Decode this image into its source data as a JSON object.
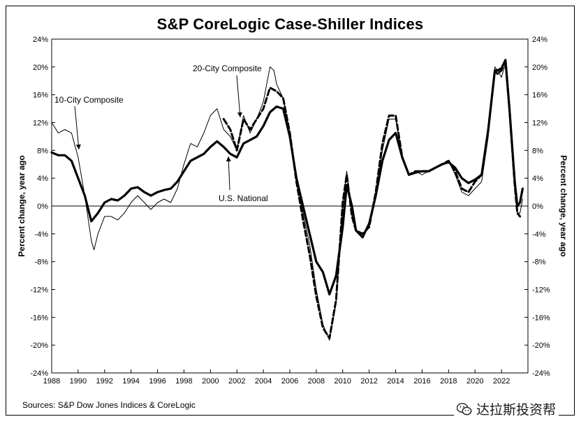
{
  "chart_data": {
    "type": "line",
    "title": "S&P CoreLogic Case-Shiller Indices",
    "ylabel_left": "Percent change, year ago",
    "ylabel_right": "Percent change, year ago",
    "xlabel": "",
    "xlim": [
      1988,
      2024
    ],
    "ylim": [
      -24,
      24
    ],
    "x_ticks": [
      "1988",
      "1990",
      "1992",
      "1994",
      "1996",
      "1998",
      "2000",
      "2002",
      "2004",
      "2006",
      "2008",
      "2010",
      "2012",
      "2014",
      "2016",
      "2018",
      "2020",
      "2022"
    ],
    "y_ticks": [
      "24%",
      "20%",
      "16%",
      "12%",
      "8%",
      "4%",
      "0%",
      "-4%",
      "-8%",
      "-12%",
      "-16%",
      "-20%",
      "-24%"
    ],
    "grid": false,
    "source": "Sources: S&P Dow Jones Indices & CoreLogic",
    "annotations": [
      {
        "text": "10-City Composite"
      },
      {
        "text": "20-City Composite"
      },
      {
        "text": "U.S. National"
      }
    ],
    "series": [
      {
        "name": "10-City Composite",
        "style": "thin",
        "points": [
          [
            1988,
            12.0
          ],
          [
            1988.5,
            10.5
          ],
          [
            1989,
            11.0
          ],
          [
            1989.5,
            10.5
          ],
          [
            1990,
            7.0
          ],
          [
            1990.5,
            1.5
          ],
          [
            1991,
            -5.0
          ],
          [
            1991.2,
            -6.3
          ],
          [
            1991.5,
            -4.0
          ],
          [
            1992,
            -1.5
          ],
          [
            1992.5,
            -1.5
          ],
          [
            1993,
            -2.0
          ],
          [
            1993.5,
            -1.0
          ],
          [
            1994,
            0.5
          ],
          [
            1994.5,
            1.5
          ],
          [
            1995,
            0.5
          ],
          [
            1995.5,
            -0.5
          ],
          [
            1996,
            0.5
          ],
          [
            1996.5,
            1.0
          ],
          [
            1997,
            0.5
          ],
          [
            1997.5,
            2.5
          ],
          [
            1998,
            6.0
          ],
          [
            1998.5,
            9.0
          ],
          [
            1999,
            8.5
          ],
          [
            1999.5,
            10.5
          ],
          [
            2000,
            13.0
          ],
          [
            2000.5,
            14.0
          ],
          [
            2001,
            11.0
          ],
          [
            2001.5,
            10.0
          ],
          [
            2002,
            8.0
          ],
          [
            2002.5,
            13.0
          ],
          [
            2003,
            10.5
          ],
          [
            2003.5,
            12.5
          ],
          [
            2004,
            15.0
          ],
          [
            2004.5,
            20.0
          ],
          [
            2004.8,
            19.5
          ],
          [
            2005,
            17.5
          ],
          [
            2005.5,
            15.5
          ],
          [
            2006,
            10.0
          ],
          [
            2006.5,
            4.0
          ],
          [
            2007,
            -1.0
          ],
          [
            2007.5,
            -5.5
          ],
          [
            2008,
            -12.0
          ],
          [
            2008.5,
            -17.0
          ],
          [
            2009,
            -19.3
          ],
          [
            2009.5,
            -14.0
          ],
          [
            2010,
            0.0
          ],
          [
            2010.3,
            5.0
          ],
          [
            2010.7,
            -1.0
          ],
          [
            2011,
            -3.5
          ],
          [
            2011.5,
            -4.0
          ],
          [
            2012,
            -3.0
          ],
          [
            2012.5,
            1.5
          ],
          [
            2013,
            8.0
          ],
          [
            2013.5,
            12.5
          ],
          [
            2014,
            12.5
          ],
          [
            2014.5,
            7.0
          ],
          [
            2015,
            4.5
          ],
          [
            2015.5,
            5.0
          ],
          [
            2016,
            4.5
          ],
          [
            2016.5,
            5.0
          ],
          [
            2017,
            5.5
          ],
          [
            2017.5,
            6.0
          ],
          [
            2018,
            6.5
          ],
          [
            2018.5,
            4.5
          ],
          [
            2019,
            2.0
          ],
          [
            2019.5,
            1.5
          ],
          [
            2020,
            2.5
          ],
          [
            2020.5,
            3.5
          ],
          [
            2021,
            10.0
          ],
          [
            2021.5,
            20.0
          ],
          [
            2021.7,
            19.5
          ],
          [
            2022,
            18.5
          ],
          [
            2022.3,
            20.5
          ],
          [
            2022.6,
            14.0
          ],
          [
            2023,
            3.0
          ],
          [
            2023.2,
            -1.0
          ],
          [
            2023.4,
            -1.0
          ],
          [
            2023.6,
            1.0
          ]
        ]
      },
      {
        "name": "20-City Composite",
        "style": "dashed",
        "points": [
          [
            2001,
            12.5
          ],
          [
            2001.5,
            11.0
          ],
          [
            2002,
            8.0
          ],
          [
            2002.5,
            12.5
          ],
          [
            2003,
            11.0
          ],
          [
            2003.5,
            12.5
          ],
          [
            2004,
            14.0
          ],
          [
            2004.5,
            17.0
          ],
          [
            2005,
            16.5
          ],
          [
            2005.5,
            15.5
          ],
          [
            2006,
            10.5
          ],
          [
            2006.5,
            3.5
          ],
          [
            2007,
            -2.0
          ],
          [
            2007.5,
            -7.0
          ],
          [
            2008,
            -13.0
          ],
          [
            2008.5,
            -17.5
          ],
          [
            2009,
            -19.0
          ],
          [
            2009.5,
            -13.5
          ],
          [
            2010,
            0.5
          ],
          [
            2010.3,
            4.5
          ],
          [
            2010.7,
            -1.5
          ],
          [
            2011,
            -3.5
          ],
          [
            2011.5,
            -4.0
          ],
          [
            2012,
            -3.0
          ],
          [
            2012.5,
            2.0
          ],
          [
            2013,
            9.0
          ],
          [
            2013.5,
            13.0
          ],
          [
            2014,
            13.0
          ],
          [
            2014.5,
            7.0
          ],
          [
            2015,
            4.5
          ],
          [
            2015.5,
            5.0
          ],
          [
            2016,
            5.0
          ],
          [
            2016.5,
            5.0
          ],
          [
            2017,
            5.5
          ],
          [
            2017.5,
            6.0
          ],
          [
            2018,
            6.5
          ],
          [
            2018.5,
            5.0
          ],
          [
            2019,
            2.5
          ],
          [
            2019.5,
            2.0
          ],
          [
            2020,
            3.5
          ],
          [
            2020.5,
            4.5
          ],
          [
            2021,
            11.0
          ],
          [
            2021.5,
            19.5
          ],
          [
            2021.7,
            19.0
          ],
          [
            2022,
            19.5
          ],
          [
            2022.3,
            21.0
          ],
          [
            2022.6,
            14.0
          ],
          [
            2023,
            3.0
          ],
          [
            2023.2,
            -1.0
          ],
          [
            2023.4,
            -1.5
          ]
        ]
      },
      {
        "name": "U.S. National",
        "style": "thick",
        "points": [
          [
            1988,
            7.7
          ],
          [
            1988.5,
            7.3
          ],
          [
            1989,
            7.3
          ],
          [
            1989.5,
            6.5
          ],
          [
            1990,
            4.0
          ],
          [
            1990.5,
            1.5
          ],
          [
            1991,
            -2.2
          ],
          [
            1991.5,
            -1.0
          ],
          [
            1992,
            0.5
          ],
          [
            1992.5,
            1.0
          ],
          [
            1993,
            0.8
          ],
          [
            1993.5,
            1.5
          ],
          [
            1994,
            2.5
          ],
          [
            1994.5,
            2.7
          ],
          [
            1995,
            2.0
          ],
          [
            1995.5,
            1.5
          ],
          [
            1996,
            2.0
          ],
          [
            1996.5,
            2.3
          ],
          [
            1997,
            2.5
          ],
          [
            1997.5,
            3.5
          ],
          [
            1998,
            5.0
          ],
          [
            1998.5,
            6.5
          ],
          [
            1999,
            7.0
          ],
          [
            1999.5,
            7.5
          ],
          [
            2000,
            8.5
          ],
          [
            2000.5,
            9.3
          ],
          [
            2001,
            8.5
          ],
          [
            2001.5,
            7.5
          ],
          [
            2002,
            7.0
          ],
          [
            2002.5,
            9.0
          ],
          [
            2003,
            9.5
          ],
          [
            2003.5,
            10.0
          ],
          [
            2004,
            11.5
          ],
          [
            2004.5,
            13.5
          ],
          [
            2005,
            14.3
          ],
          [
            2005.5,
            14.0
          ],
          [
            2006,
            10.0
          ],
          [
            2006.5,
            4.0
          ],
          [
            2007,
            0.0
          ],
          [
            2007.5,
            -4.0
          ],
          [
            2008,
            -8.0
          ],
          [
            2008.5,
            -9.5
          ],
          [
            2009,
            -12.7
          ],
          [
            2009.5,
            -10.0
          ],
          [
            2010,
            -3.0
          ],
          [
            2010.3,
            3.0
          ],
          [
            2010.7,
            0.0
          ],
          [
            2011,
            -3.5
          ],
          [
            2011.5,
            -4.5
          ],
          [
            2012,
            -2.5
          ],
          [
            2012.5,
            1.5
          ],
          [
            2013,
            6.5
          ],
          [
            2013.5,
            9.5
          ],
          [
            2014,
            10.5
          ],
          [
            2014.5,
            7.0
          ],
          [
            2015,
            4.5
          ],
          [
            2015.5,
            4.8
          ],
          [
            2016,
            5.0
          ],
          [
            2016.5,
            5.0
          ],
          [
            2017,
            5.5
          ],
          [
            2017.5,
            6.0
          ],
          [
            2018,
            6.3
          ],
          [
            2018.5,
            5.5
          ],
          [
            2019,
            4.0
          ],
          [
            2019.5,
            3.3
          ],
          [
            2020,
            3.8
          ],
          [
            2020.5,
            4.5
          ],
          [
            2021,
            11.0
          ],
          [
            2021.5,
            19.5
          ],
          [
            2021.7,
            19.5
          ],
          [
            2022,
            19.8
          ],
          [
            2022.3,
            21.0
          ],
          [
            2022.6,
            14.0
          ],
          [
            2023,
            3.5
          ],
          [
            2023.2,
            0.0
          ],
          [
            2023.4,
            0.5
          ],
          [
            2023.6,
            2.5
          ]
        ]
      }
    ]
  },
  "watermark": {
    "text": "达拉斯投资帮",
    "icon": "wechat-icon"
  }
}
